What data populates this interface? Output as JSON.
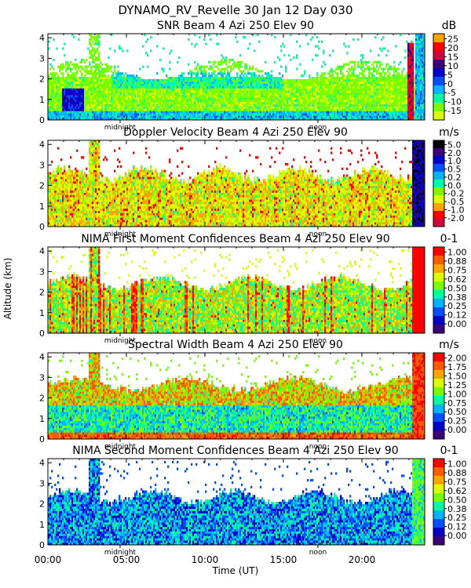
{
  "figure": {
    "suptitle": "DYNAMO_RV_Revelle  30 Jan 12 Day 030",
    "ylabel": "Altitude (km)",
    "xlabel": "Time (UT)",
    "x_ticklabels": [
      "00:00",
      "05:00",
      "10:00",
      "15:00",
      "20:00"
    ],
    "midnight_label": "midnight",
    "noon_label": "noon"
  },
  "chart_data": [
    {
      "type": "heatmap",
      "title": "SNR Beam 4 Azi 250 Elev 90",
      "unit": "dB",
      "xlim": [
        0,
        24
      ],
      "ylim": [
        0,
        4.2
      ],
      "y_ticks": [
        0,
        1,
        2,
        3,
        4
      ],
      "x_ticks": [
        0,
        5,
        10,
        15,
        20
      ],
      "colorbar_labels": [
        "25",
        "20",
        "15",
        "10",
        "5",
        "0",
        "-5",
        "-10",
        "-15"
      ],
      "colors": [
        "#ffa500",
        "#ff0000",
        "#d2003c",
        "#3c0078",
        "#0000c8",
        "#0050ff",
        "#00b4ff",
        "#00ffa0",
        "#78ff00",
        "#dcff00"
      ],
      "pattern": "snr",
      "midnight_x": 4.6,
      "noon_x": 17.2
    },
    {
      "type": "heatmap",
      "title": "Doppler Velocity Beam 4 Azi 250 Elev 90",
      "unit": "m/s",
      "xlim": [
        0,
        24
      ],
      "ylim": [
        0,
        4.2
      ],
      "y_ticks": [
        0,
        1,
        2,
        3,
        4
      ],
      "x_ticks": [
        0,
        5,
        10,
        15,
        20
      ],
      "colorbar_labels": [
        "5.0",
        "2.0",
        "1.0",
        "0.5",
        "0.2",
        "0.0",
        "-0.2",
        "-0.5",
        "-1.0",
        "-2.0"
      ],
      "colors": [
        "#000000",
        "#3c0078",
        "#0000c8",
        "#0050ff",
        "#00b4ff",
        "#00ffa0",
        "#78ff00",
        "#dcff00",
        "#ffa500",
        "#ff0000",
        "#d2003c"
      ],
      "pattern": "doppler",
      "midnight_x": 4.6,
      "noon_x": 17.2
    },
    {
      "type": "heatmap",
      "title": "NIMA First Moment Confidences Beam 4 Azi 250 Elev 90",
      "unit": "0-1",
      "xlim": [
        0,
        24
      ],
      "ylim": [
        0,
        4.2
      ],
      "y_ticks": [
        0,
        1,
        2,
        3,
        4
      ],
      "x_ticks": [
        0,
        5,
        10,
        15,
        20
      ],
      "colorbar_labels": [
        "1.00",
        "0.88",
        "0.75",
        "0.62",
        "0.50",
        "0.38",
        "0.25",
        "0.12",
        "0.00"
      ],
      "colors": [
        "#ff0000",
        "#ff5a00",
        "#ffa500",
        "#dcff00",
        "#78ff00",
        "#00ffa0",
        "#00b4ff",
        "#0050ff",
        "#0000c8",
        "#3c0078"
      ],
      "pattern": "conf1",
      "midnight_x": 4.6,
      "noon_x": 17.2
    },
    {
      "type": "heatmap",
      "title": "Spectral Width Beam 4 Azi 250 Elev 90",
      "unit": "m/s",
      "xlim": [
        0,
        24
      ],
      "ylim": [
        0,
        4.2
      ],
      "y_ticks": [
        0,
        1,
        2,
        3,
        4
      ],
      "x_ticks": [
        0,
        5,
        10,
        15,
        20
      ],
      "colorbar_labels": [
        "2.00",
        "1.75",
        "1.50",
        "1.25",
        "1.00",
        "0.75",
        "0.50",
        "0.25",
        "0.00"
      ],
      "colors": [
        "#ff0000",
        "#ff5a00",
        "#ffa500",
        "#dcff00",
        "#78ff00",
        "#00ffa0",
        "#00b4ff",
        "#0050ff",
        "#0000c8",
        "#3c0078"
      ],
      "pattern": "width",
      "midnight_x": 4.6,
      "noon_x": 17.2
    },
    {
      "type": "heatmap",
      "title": "NIMA Second Moment Confidences Beam 4 Azi 250 Elev 90",
      "unit": "0-1",
      "xlim": [
        0,
        24
      ],
      "ylim": [
        0,
        4.2
      ],
      "y_ticks": [
        0,
        1,
        2,
        3,
        4
      ],
      "x_ticks": [
        0,
        5,
        10,
        15,
        20
      ],
      "colorbar_labels": [
        "1.00",
        "0.88",
        "0.75",
        "0.62",
        "0.50",
        "0.38",
        "0.25",
        "0.12",
        "0.00"
      ],
      "colors": [
        "#ff0000",
        "#ff5a00",
        "#ffa500",
        "#dcff00",
        "#78ff00",
        "#00ffa0",
        "#00b4ff",
        "#0050ff",
        "#0000c8",
        "#3c0078"
      ],
      "pattern": "conf2",
      "midnight_x": 4.6,
      "noon_x": 17.2
    }
  ]
}
